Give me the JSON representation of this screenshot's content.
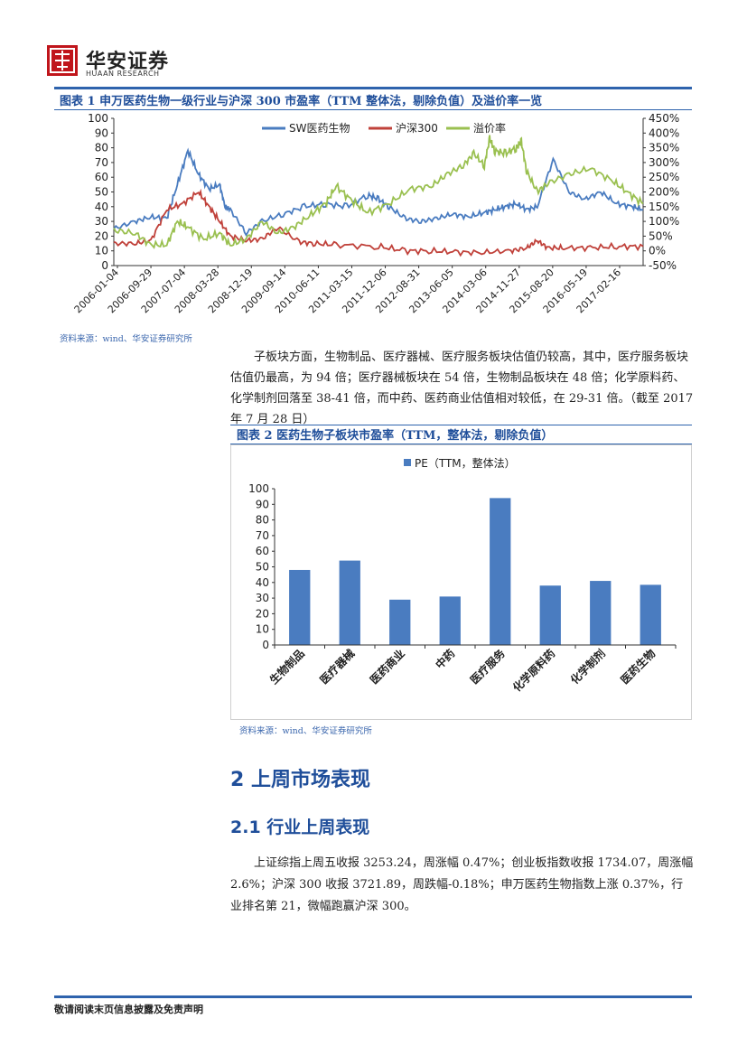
{
  "header": {
    "logo_cn": "华安证券",
    "logo_en": "HUAAN RESEARCH"
  },
  "figure1": {
    "title": "图表 1 申万医药生物一级行业与沪深 300 市盈率（TTM 整体法，剔除负值）及溢价率一览",
    "source": "资料来源：wind、华安证券研究所"
  },
  "paragraph1": "子板块方面，生物制品、医疗器械、医疗服务板块估值仍较高，其中，医疗服务板块估值仍最高，为 94 倍；医疗器械板块在 54 倍，生物制品板块在 48 倍；化学原料药、化学制剂回落至 38-41 倍，而中药、医药商业估值相对较低，在 29-31 倍。（截至 2017 年 7 月 28 日）",
  "figure2": {
    "title": "图表 2 医药生物子板块市盈率（TTM，整体法，剔除负值）",
    "source": "资料来源：wind、华安证券研究所"
  },
  "section": {
    "h2": "2 上周市场表现",
    "h3": "2.1 行业上周表现",
    "paragraph": "上证综指上周五收报 3253.24，周涨幅 0.47%；创业板指数收报 1734.07，周涨幅 2.6%；沪深 300 收报 3721.89，周跌幅-0.18%；申万医药生物指数上涨 0.37%，行业排名第 21，微幅跑赢沪深 300。"
  },
  "footer": {
    "text": "敬请阅读末页信息披露及免责声明"
  },
  "chart_data": [
    {
      "type": "line",
      "x_ticks": [
        "2006-01-04",
        "2006-09-29",
        "2007-07-04",
        "2008-03-28",
        "2008-12-19",
        "2009-09-14",
        "2010-06-11",
        "2011-03-15",
        "2011-12-06",
        "2012-08-31",
        "2013-06-05",
        "2014-03-06",
        "2014-11-27",
        "2015-08-20",
        "2016-05-19",
        "2017-02-16"
      ],
      "ylim": [
        0,
        100
      ],
      "y_ticks": [
        0,
        10,
        20,
        30,
        40,
        50,
        60,
        70,
        80,
        90,
        100
      ],
      "y2lim": [
        -50,
        450
      ],
      "y2_ticks": [
        "-50%",
        "0%",
        "50%",
        "100%",
        "150%",
        "200%",
        "250%",
        "300%",
        "350%",
        "400%",
        "450%"
      ],
      "legend_position": "top-center",
      "series": [
        {
          "name": "SW医药生物",
          "color": "#4a7cc0",
          "axis": "left",
          "x": [
            0,
            0.04,
            0.07,
            0.1,
            0.12,
            0.14,
            0.16,
            0.18,
            0.2,
            0.21,
            0.22,
            0.25,
            0.28,
            0.32,
            0.36,
            0.4,
            0.44,
            0.48,
            0.5,
            0.52,
            0.55,
            0.58,
            0.61,
            0.64,
            0.67,
            0.7,
            0.72,
            0.74,
            0.76,
            0.78,
            0.8,
            0.83,
            0.86,
            0.89,
            0.92,
            0.95,
            0.98,
            1.0
          ],
          "values": [
            25,
            30,
            33,
            32,
            55,
            78,
            62,
            52,
            55,
            40,
            38,
            22,
            30,
            35,
            40,
            42,
            40,
            48,
            45,
            40,
            32,
            30,
            32,
            35,
            33,
            36,
            38,
            40,
            42,
            38,
            40,
            72,
            50,
            45,
            50,
            42,
            40,
            38
          ]
        },
        {
          "name": "沪深300",
          "color": "#c0413a",
          "axis": "left",
          "x": [
            0,
            0.04,
            0.07,
            0.1,
            0.13,
            0.16,
            0.18,
            0.2,
            0.22,
            0.25,
            0.28,
            0.31,
            0.35,
            0.38,
            0.42,
            0.5,
            0.55,
            0.6,
            0.65,
            0.7,
            0.75,
            0.78,
            0.8,
            0.82,
            0.85,
            0.9,
            0.95,
            1.0
          ],
          "values": [
            15,
            15,
            17,
            38,
            42,
            50,
            40,
            30,
            20,
            17,
            18,
            26,
            16,
            15,
            14,
            13,
            10,
            10,
            9,
            9,
            10,
            12,
            17,
            12,
            12,
            12,
            13,
            13
          ]
        },
        {
          "name": "溢价率",
          "color": "#9ac050",
          "axis": "right",
          "x": [
            0,
            0.04,
            0.07,
            0.1,
            0.12,
            0.14,
            0.17,
            0.2,
            0.22,
            0.25,
            0.28,
            0.31,
            0.34,
            0.37,
            0.4,
            0.42,
            0.45,
            0.48,
            0.52,
            0.56,
            0.6,
            0.63,
            0.66,
            0.68,
            0.7,
            0.71,
            0.72,
            0.74,
            0.76,
            0.77,
            0.78,
            0.8,
            0.82,
            0.86,
            0.9,
            0.94,
            0.97,
            1.0
          ],
          "values": [
            70,
            60,
            20,
            20,
            100,
            80,
            40,
            60,
            20,
            40,
            100,
            60,
            80,
            120,
            160,
            220,
            170,
            130,
            160,
            210,
            220,
            260,
            290,
            330,
            290,
            380,
            340,
            330,
            350,
            370,
            270,
            200,
            230,
            260,
            280,
            240,
            200,
            160
          ]
        }
      ]
    },
    {
      "type": "bar",
      "legend": "PE（TTM，整体法）",
      "legend_position": "top-center",
      "categories": [
        "生物制品",
        "医疗器械",
        "医药商业",
        "中药",
        "医疗服务",
        "化学原料药",
        "化学制剂",
        "医药生物"
      ],
      "values": [
        48,
        54,
        29,
        31,
        94,
        38,
        41,
        38.5
      ],
      "ylim": [
        0,
        100
      ],
      "y_ticks": [
        0,
        10,
        20,
        30,
        40,
        50,
        60,
        70,
        80,
        90,
        100
      ],
      "color": "#4a7cc0"
    }
  ]
}
